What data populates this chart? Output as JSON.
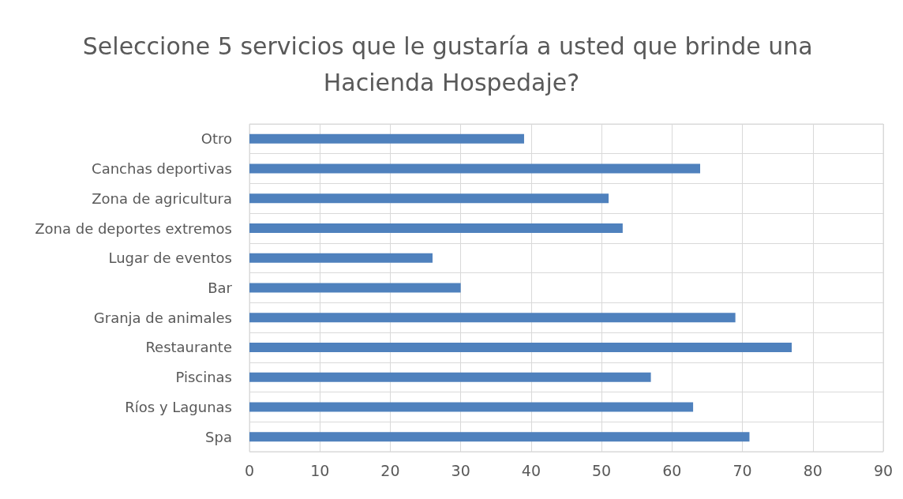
{
  "chart_data": {
    "type": "bar",
    "orientation": "horizontal",
    "title": "Seleccione 5 servicios que le gustaría a usted que brinde una Hacienda Hospedaje?",
    "categories": [
      "Otro",
      "Canchas deportivas",
      "Zona de agricultura",
      "Zona de deportes extremos",
      "Lugar de eventos",
      "Bar",
      "Granja de animales",
      "Restaurante",
      "Piscinas",
      "Ríos y Lagunas",
      "Spa"
    ],
    "values": [
      39,
      64,
      51,
      53,
      26,
      30,
      69,
      77,
      57,
      63,
      71
    ],
    "color": "#4f81bd",
    "xlim": [
      0,
      90
    ],
    "xticks": [
      0,
      10,
      20,
      30,
      40,
      50,
      60,
      70,
      80,
      90
    ],
    "grid": true
  }
}
